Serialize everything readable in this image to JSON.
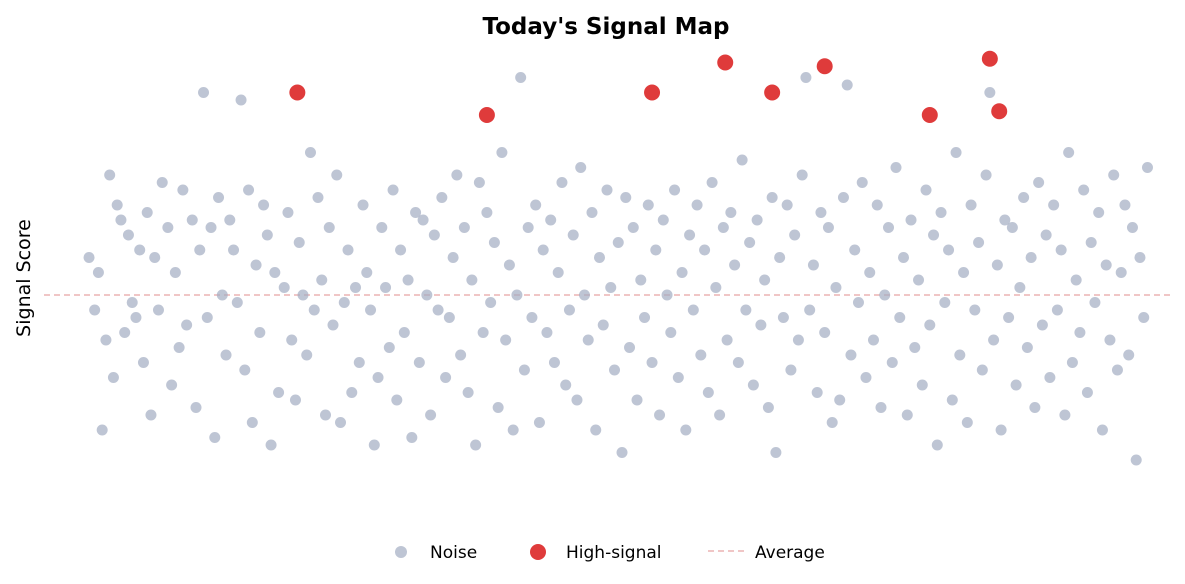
{
  "chart_data": {
    "type": "scatter",
    "title": "Today's Signal Map",
    "xlabel": "",
    "ylabel": "Signal Score",
    "xlim": [
      0,
      600
    ],
    "ylim": [
      -3.2,
      3.2
    ],
    "axes_visible": false,
    "grid": false,
    "legend_position": "bottom-center",
    "reference_line": {
      "name": "Average",
      "value": 0.0,
      "style": "dashed",
      "color": "#e8a3a3"
    },
    "series": [
      {
        "name": "Noise",
        "color": "#a3adc2",
        "marker": "circle",
        "points": [
          [
            24,
            0.5
          ],
          [
            27,
            -0.2
          ],
          [
            29,
            0.3
          ],
          [
            31,
            -1.8
          ],
          [
            33,
            -0.6
          ],
          [
            35,
            1.6
          ],
          [
            37,
            -1.1
          ],
          [
            39,
            1.2
          ],
          [
            41,
            1.0
          ],
          [
            43,
            -0.5
          ],
          [
            45,
            0.8
          ],
          [
            47,
            -0.1
          ],
          [
            49,
            -0.3
          ],
          [
            51,
            0.6
          ],
          [
            53,
            -0.9
          ],
          [
            55,
            1.1
          ],
          [
            57,
            -1.6
          ],
          [
            59,
            0.5
          ],
          [
            61,
            -0.2
          ],
          [
            63,
            1.5
          ],
          [
            66,
            0.9
          ],
          [
            68,
            -1.2
          ],
          [
            70,
            0.3
          ],
          [
            72,
            -0.7
          ],
          [
            74,
            1.4
          ],
          [
            76,
            -0.4
          ],
          [
            79,
            1.0
          ],
          [
            81,
            -1.5
          ],
          [
            83,
            0.6
          ],
          [
            85,
            2.7
          ],
          [
            87,
            -0.3
          ],
          [
            89,
            0.9
          ],
          [
            91,
            -1.9
          ],
          [
            93,
            1.3
          ],
          [
            95,
            0.0
          ],
          [
            97,
            -0.8
          ],
          [
            99,
            1.0
          ],
          [
            101,
            0.6
          ],
          [
            103,
            -0.1
          ],
          [
            105,
            2.6
          ],
          [
            107,
            -1.0
          ],
          [
            109,
            1.4
          ],
          [
            111,
            -1.7
          ],
          [
            113,
            0.4
          ],
          [
            115,
            -0.5
          ],
          [
            117,
            1.2
          ],
          [
            119,
            0.8
          ],
          [
            121,
            -2.0
          ],
          [
            123,
            0.3
          ],
          [
            125,
            -1.3
          ],
          [
            128,
            0.1
          ],
          [
            130,
            1.1
          ],
          [
            132,
            -0.6
          ],
          [
            134,
            -1.4
          ],
          [
            136,
            0.7
          ],
          [
            138,
            0.0
          ],
          [
            140,
            -0.8
          ],
          [
            142,
            1.9
          ],
          [
            144,
            -0.2
          ],
          [
            146,
            1.3
          ],
          [
            148,
            0.2
          ],
          [
            150,
            -1.6
          ],
          [
            152,
            0.9
          ],
          [
            154,
            -0.4
          ],
          [
            156,
            1.6
          ],
          [
            158,
            -1.7
          ],
          [
            160,
            -0.1
          ],
          [
            162,
            0.6
          ],
          [
            164,
            -1.3
          ],
          [
            166,
            0.1
          ],
          [
            168,
            -0.9
          ],
          [
            170,
            1.2
          ],
          [
            172,
            0.3
          ],
          [
            174,
            -0.2
          ],
          [
            176,
            -2.0
          ],
          [
            178,
            -1.1
          ],
          [
            180,
            0.9
          ],
          [
            182,
            0.1
          ],
          [
            184,
            -0.7
          ],
          [
            186,
            1.4
          ],
          [
            188,
            -1.4
          ],
          [
            190,
            0.6
          ],
          [
            192,
            -0.5
          ],
          [
            194,
            0.2
          ],
          [
            196,
            -1.9
          ],
          [
            198,
            1.1
          ],
          [
            200,
            -0.9
          ],
          [
            202,
            1.0
          ],
          [
            204,
            0.0
          ],
          [
            206,
            -1.6
          ],
          [
            208,
            0.8
          ],
          [
            210,
            -0.2
          ],
          [
            212,
            1.3
          ],
          [
            214,
            -1.1
          ],
          [
            216,
            -0.3
          ],
          [
            218,
            0.5
          ],
          [
            220,
            1.6
          ],
          [
            222,
            -0.8
          ],
          [
            224,
            0.9
          ],
          [
            226,
            -1.3
          ],
          [
            228,
            0.2
          ],
          [
            230,
            -2.0
          ],
          [
            232,
            1.5
          ],
          [
            234,
            -0.5
          ],
          [
            236,
            1.1
          ],
          [
            238,
            -0.1
          ],
          [
            240,
            0.7
          ],
          [
            242,
            -1.5
          ],
          [
            244,
            1.9
          ],
          [
            246,
            -0.6
          ],
          [
            248,
            0.4
          ],
          [
            250,
            -1.8
          ],
          [
            252,
            0.0
          ],
          [
            254,
            2.9
          ],
          [
            256,
            -1.0
          ],
          [
            258,
            0.9
          ],
          [
            260,
            -0.3
          ],
          [
            262,
            1.2
          ],
          [
            264,
            -1.7
          ],
          [
            266,
            0.6
          ],
          [
            268,
            -0.5
          ],
          [
            270,
            1.0
          ],
          [
            272,
            -0.9
          ],
          [
            274,
            0.3
          ],
          [
            276,
            1.5
          ],
          [
            278,
            -1.2
          ],
          [
            280,
            -0.2
          ],
          [
            282,
            0.8
          ],
          [
            284,
            -1.4
          ],
          [
            286,
            1.7
          ],
          [
            288,
            0.0
          ],
          [
            290,
            -0.6
          ],
          [
            292,
            1.1
          ],
          [
            294,
            -1.8
          ],
          [
            296,
            0.5
          ],
          [
            298,
            -0.4
          ],
          [
            300,
            1.4
          ],
          [
            302,
            0.1
          ],
          [
            304,
            -1.0
          ],
          [
            306,
            0.7
          ],
          [
            308,
            -2.1
          ],
          [
            310,
            1.3
          ],
          [
            312,
            -0.7
          ],
          [
            314,
            0.9
          ],
          [
            316,
            -1.4
          ],
          [
            318,
            0.2
          ],
          [
            320,
            -0.3
          ],
          [
            322,
            1.2
          ],
          [
            324,
            -0.9
          ],
          [
            326,
            0.6
          ],
          [
            328,
            -1.6
          ],
          [
            330,
            1.0
          ],
          [
            332,
            0.0
          ],
          [
            334,
            -0.5
          ],
          [
            336,
            1.4
          ],
          [
            338,
            -1.1
          ],
          [
            340,
            0.3
          ],
          [
            342,
            -1.8
          ],
          [
            344,
            0.8
          ],
          [
            346,
            -0.2
          ],
          [
            348,
            1.2
          ],
          [
            350,
            -0.8
          ],
          [
            352,
            0.6
          ],
          [
            354,
            -1.3
          ],
          [
            356,
            1.5
          ],
          [
            358,
            0.1
          ],
          [
            360,
            -1.6
          ],
          [
            362,
            0.9
          ],
          [
            364,
            -0.6
          ],
          [
            366,
            1.1
          ],
          [
            368,
            0.4
          ],
          [
            370,
            -0.9
          ],
          [
            372,
            1.8
          ],
          [
            374,
            -0.2
          ],
          [
            376,
            0.7
          ],
          [
            378,
            -1.2
          ],
          [
            380,
            1.0
          ],
          [
            382,
            -0.4
          ],
          [
            384,
            0.2
          ],
          [
            386,
            -1.5
          ],
          [
            388,
            1.3
          ],
          [
            390,
            -2.1
          ],
          [
            392,
            0.5
          ],
          [
            394,
            -0.3
          ],
          [
            396,
            1.2
          ],
          [
            398,
            -1.0
          ],
          [
            400,
            0.8
          ],
          [
            402,
            -0.6
          ],
          [
            404,
            1.6
          ],
          [
            406,
            2.9
          ],
          [
            408,
            -0.2
          ],
          [
            410,
            0.4
          ],
          [
            412,
            -1.3
          ],
          [
            414,
            1.1
          ],
          [
            416,
            -0.5
          ],
          [
            418,
            0.9
          ],
          [
            420,
            -1.7
          ],
          [
            422,
            0.1
          ],
          [
            424,
            -1.4
          ],
          [
            426,
            1.3
          ],
          [
            428,
            2.8
          ],
          [
            430,
            -0.8
          ],
          [
            432,
            0.6
          ],
          [
            434,
            -0.1
          ],
          [
            436,
            1.5
          ],
          [
            438,
            -1.1
          ],
          [
            440,
            0.3
          ],
          [
            442,
            -0.6
          ],
          [
            444,
            1.2
          ],
          [
            446,
            -1.5
          ],
          [
            448,
            0.0
          ],
          [
            450,
            0.9
          ],
          [
            452,
            -0.9
          ],
          [
            454,
            1.7
          ],
          [
            456,
            -0.3
          ],
          [
            458,
            0.5
          ],
          [
            460,
            -1.6
          ],
          [
            462,
            1.0
          ],
          [
            464,
            -0.7
          ],
          [
            466,
            0.2
          ],
          [
            468,
            -1.2
          ],
          [
            470,
            1.4
          ],
          [
            472,
            -0.4
          ],
          [
            474,
            0.8
          ],
          [
            476,
            -2.0
          ],
          [
            478,
            1.1
          ],
          [
            480,
            -0.1
          ],
          [
            482,
            0.6
          ],
          [
            484,
            -1.4
          ],
          [
            486,
            1.9
          ],
          [
            488,
            -0.8
          ],
          [
            490,
            0.3
          ],
          [
            492,
            -1.7
          ],
          [
            494,
            1.2
          ],
          [
            496,
            -0.2
          ],
          [
            498,
            0.7
          ],
          [
            500,
            -1.0
          ],
          [
            502,
            1.6
          ],
          [
            504,
            2.7
          ],
          [
            506,
            -0.6
          ],
          [
            508,
            0.4
          ],
          [
            510,
            -1.8
          ],
          [
            512,
            1.0
          ],
          [
            514,
            -0.3
          ],
          [
            516,
            0.9
          ],
          [
            518,
            -1.2
          ],
          [
            520,
            0.1
          ],
          [
            522,
            1.3
          ],
          [
            524,
            -0.7
          ],
          [
            526,
            0.5
          ],
          [
            528,
            -1.5
          ],
          [
            530,
            1.5
          ],
          [
            532,
            -0.4
          ],
          [
            534,
            0.8
          ],
          [
            536,
            -1.1
          ],
          [
            538,
            1.2
          ],
          [
            540,
            -0.2
          ],
          [
            542,
            0.6
          ],
          [
            544,
            -1.6
          ],
          [
            546,
            1.9
          ],
          [
            548,
            -0.9
          ],
          [
            550,
            0.2
          ],
          [
            552,
            -0.5
          ],
          [
            554,
            1.4
          ],
          [
            556,
            -1.3
          ],
          [
            558,
            0.7
          ],
          [
            560,
            -0.1
          ],
          [
            562,
            1.1
          ],
          [
            564,
            -1.8
          ],
          [
            566,
            0.4
          ],
          [
            568,
            -0.6
          ],
          [
            570,
            1.6
          ],
          [
            572,
            -1.0
          ],
          [
            574,
            0.3
          ],
          [
            576,
            1.2
          ],
          [
            578,
            -0.8
          ],
          [
            580,
            0.9
          ],
          [
            582,
            -2.2
          ],
          [
            584,
            0.5
          ],
          [
            586,
            -0.3
          ],
          [
            588,
            1.7
          ]
        ]
      },
      {
        "name": "High-signal",
        "color": "#dc2626",
        "marker": "circle",
        "points": [
          [
            135,
            2.7
          ],
          [
            236,
            2.4
          ],
          [
            324,
            2.7
          ],
          [
            363,
            3.1
          ],
          [
            388,
            2.7
          ],
          [
            416,
            3.05
          ],
          [
            472,
            2.4
          ],
          [
            504,
            3.15
          ],
          [
            509,
            2.45
          ]
        ]
      }
    ]
  }
}
